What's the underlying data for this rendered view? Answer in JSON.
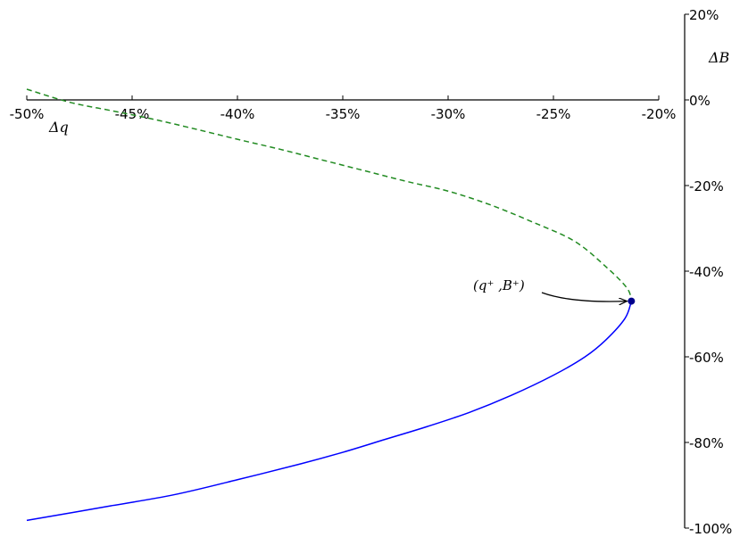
{
  "chart_data": {
    "type": "line",
    "xlabel": "Δq",
    "ylabel": "ΔB",
    "xlim": [
      -50,
      -20
    ],
    "ylim": [
      -100,
      20
    ],
    "x_ticks": [
      -50,
      -45,
      -40,
      -35,
      -30,
      -25,
      -20
    ],
    "x_tick_labels": [
      "-50%",
      "-45%",
      "-40%",
      "-35%",
      "-30%",
      "-25%",
      "-20%"
    ],
    "y_ticks": [
      20,
      0,
      -20,
      -40,
      -60,
      -80,
      -100
    ],
    "y_tick_labels": [
      "20%",
      "0%",
      "-20%",
      "-40%",
      "-60%",
      "-80%",
      "-100%"
    ],
    "grid": false,
    "series": [
      {
        "style": "dashed",
        "color": "#228b22",
        "points": [
          [
            -50,
            2.5
          ],
          [
            -48,
            -0.5
          ],
          [
            -46,
            -2.5
          ],
          [
            -44,
            -4.5
          ],
          [
            -42,
            -6.8
          ],
          [
            -40,
            -9.2
          ],
          [
            -38,
            -11.5
          ],
          [
            -36,
            -14
          ],
          [
            -34,
            -16.5
          ],
          [
            -32,
            -19
          ],
          [
            -30,
            -21.3
          ],
          [
            -28,
            -24.5
          ],
          [
            -26,
            -28.5
          ],
          [
            -24,
            -33
          ],
          [
            -22.5,
            -39
          ],
          [
            -21.5,
            -44
          ],
          [
            -21.3,
            -47
          ]
        ]
      },
      {
        "style": "solid",
        "color": "#0000ff",
        "points": [
          [
            -21.3,
            -47
          ],
          [
            -21.6,
            -51
          ],
          [
            -22.5,
            -56
          ],
          [
            -23.5,
            -60
          ],
          [
            -25,
            -64.3
          ],
          [
            -27,
            -69
          ],
          [
            -29,
            -73
          ],
          [
            -31,
            -76.3
          ],
          [
            -33,
            -79.3
          ],
          [
            -35,
            -82.3
          ],
          [
            -37,
            -85
          ],
          [
            -40,
            -88.7
          ],
          [
            -43,
            -92.2
          ],
          [
            -46,
            -94.8
          ],
          [
            -50,
            -98.2
          ]
        ]
      }
    ],
    "point": {
      "x": -21.3,
      "y": -47,
      "label": "(q⁺ ,B⁺)",
      "color": "#00008b"
    }
  }
}
